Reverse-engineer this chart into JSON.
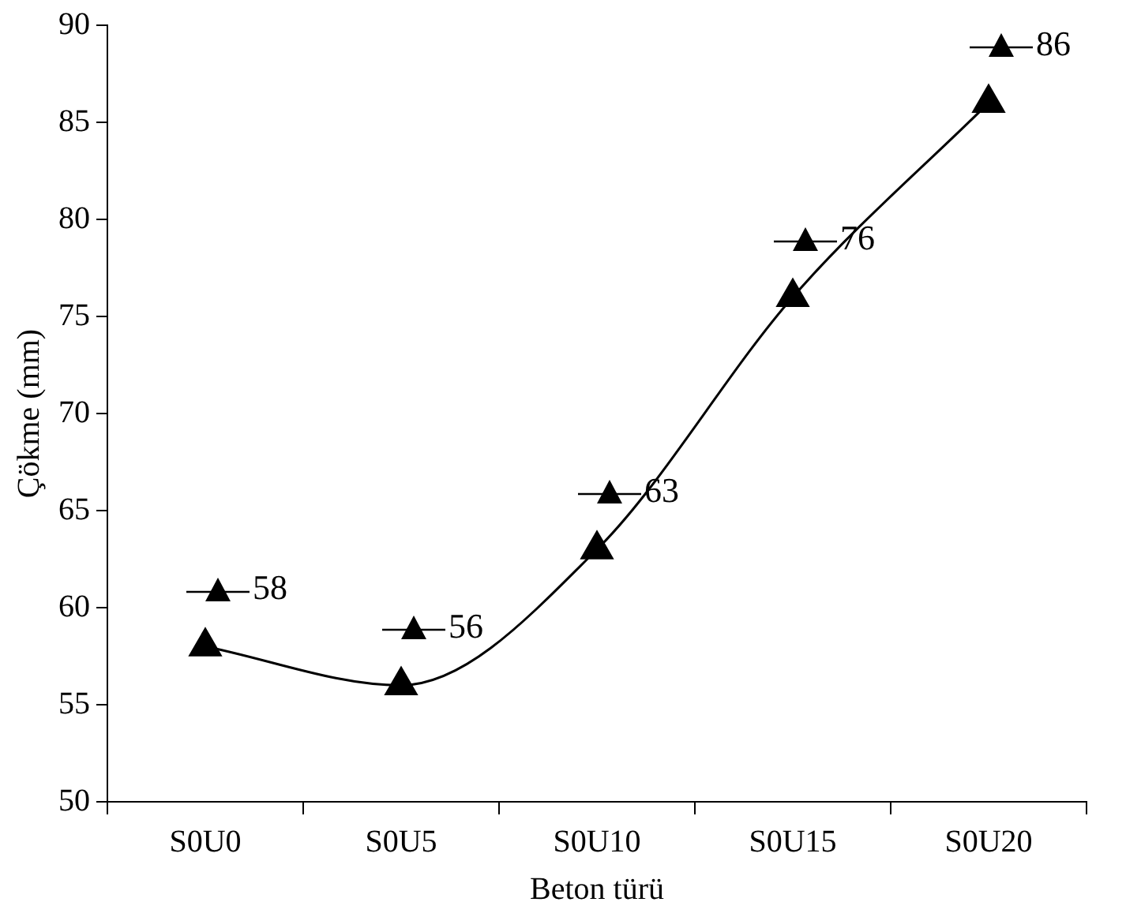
{
  "chart_data": {
    "type": "line",
    "xlabel": "Beton türü",
    "ylabel": "Çökme (mm)",
    "categories": [
      "S0U0",
      "S0U5",
      "S0U10",
      "S0U15",
      "S0U20"
    ],
    "values": [
      58,
      56,
      63,
      76,
      86
    ],
    "color": "#000000",
    "ylim": [
      50,
      90
    ],
    "yticks": [
      50,
      55,
      60,
      65,
      70,
      75,
      80,
      85,
      90
    ],
    "marker": "triangle",
    "data_labels": true
  }
}
